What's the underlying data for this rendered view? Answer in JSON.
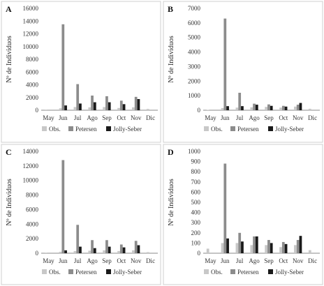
{
  "chart_data": [
    {
      "type": "bar",
      "panel": "A",
      "ylabel": "Nº de Individuos",
      "categories": [
        "May",
        "Jun",
        "Jul",
        "Ago",
        "Sep",
        "Oct",
        "Nov",
        "Dic"
      ],
      "yticks": [
        "0",
        "2000",
        "4000",
        "6000",
        "8000",
        "10000",
        "12000",
        "14000",
        "16000"
      ],
      "ylim": [
        0,
        16000
      ],
      "series": [
        {
          "name": "Obs.",
          "color": "#c8c8c8",
          "values": [
            20,
            300,
            500,
            450,
            500,
            350,
            450,
            200
          ]
        },
        {
          "name": "Petersen",
          "color": "#8c8c8c",
          "values": [
            0,
            13500,
            4100,
            2300,
            2200,
            1500,
            2100,
            0
          ]
        },
        {
          "name": "Jolly-Seber",
          "color": "#1a1a1a",
          "values": [
            0,
            750,
            1050,
            1250,
            1250,
            950,
            1750,
            0
          ]
        }
      ]
    },
    {
      "type": "bar",
      "panel": "B",
      "ylabel": "Nº de Individuos",
      "categories": [
        "May",
        "Jun",
        "Jul",
        "Ago",
        "Sep",
        "Oct",
        "Nov",
        "Dic"
      ],
      "yticks": [
        "0",
        "1000",
        "2000",
        "3000",
        "4000",
        "5000",
        "6000",
        "7000"
      ],
      "ylim": [
        0,
        7000
      ],
      "series": [
        {
          "name": "Obs.",
          "color": "#c8c8c8",
          "values": [
            20,
            150,
            180,
            200,
            230,
            180,
            250,
            100
          ]
        },
        {
          "name": "Petersen",
          "color": "#8c8c8c",
          "values": [
            0,
            6300,
            1200,
            450,
            400,
            300,
            380,
            0
          ]
        },
        {
          "name": "Jolly-Seber",
          "color": "#1a1a1a",
          "values": [
            0,
            280,
            280,
            380,
            300,
            250,
            500,
            0
          ]
        }
      ]
    },
    {
      "type": "bar",
      "panel": "C",
      "ylabel": "Nº de Individuos",
      "categories": [
        "May",
        "Jun",
        "Jul",
        "Ago",
        "Sep",
        "Oct",
        "Nov",
        "Dic"
      ],
      "yticks": [
        "0",
        "2000",
        "4000",
        "6000",
        "8000",
        "10000",
        "12000",
        "14000"
      ],
      "ylim": [
        0,
        14000
      ],
      "series": [
        {
          "name": "Obs.",
          "color": "#c8c8c8",
          "values": [
            20,
            200,
            300,
            350,
            400,
            300,
            400,
            150
          ]
        },
        {
          "name": "Petersen",
          "color": "#8c8c8c",
          "values": [
            0,
            12800,
            3900,
            1800,
            1800,
            1200,
            1700,
            0
          ]
        },
        {
          "name": "Jolly-Seber",
          "color": "#1a1a1a",
          "values": [
            0,
            400,
            900,
            700,
            900,
            800,
            1100,
            0
          ]
        }
      ]
    },
    {
      "type": "bar",
      "panel": "D",
      "ylabel": "Nº de Individuos",
      "categories": [
        "May",
        "Jun",
        "Jul",
        "Ago",
        "Sep",
        "Oct",
        "Nov",
        "Dic"
      ],
      "yticks": [
        "0",
        "100",
        "200",
        "300",
        "400",
        "500",
        "600",
        "700",
        "800",
        "900",
        "1000"
      ],
      "ylim": [
        0,
        1000
      ],
      "series": [
        {
          "name": "Obs.",
          "color": "#c8c8c8",
          "values": [
            45,
            100,
            100,
            80,
            80,
            60,
            80,
            30
          ]
        },
        {
          "name": "Petersen",
          "color": "#8c8c8c",
          "values": [
            0,
            880,
            200,
            165,
            130,
            110,
            130,
            0
          ]
        },
        {
          "name": "Jolly-Seber",
          "color": "#1a1a1a",
          "values": [
            0,
            145,
            115,
            165,
            100,
            90,
            170,
            0
          ]
        }
      ]
    }
  ]
}
